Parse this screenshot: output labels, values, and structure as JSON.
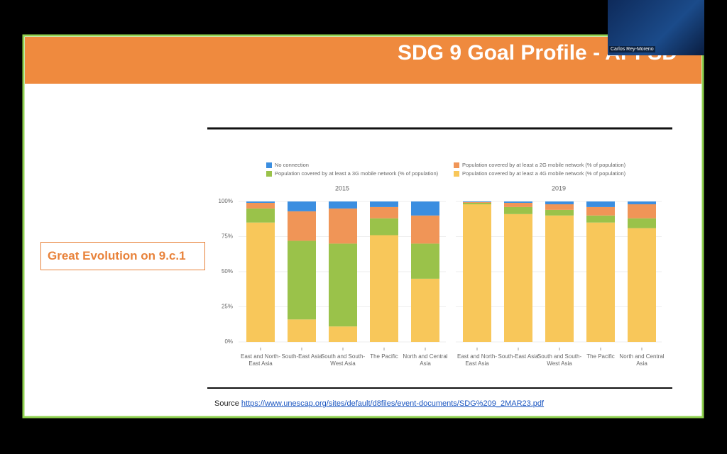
{
  "slide": {
    "title": "SDG 9 Goal Profile - APFSD",
    "callout": "Great Evolution on 9.c.1",
    "source_label": "Source",
    "source_url": "https://www.unescap.org/sites/default/d8files/event-documents/SDG%209_2MAR23.pdf"
  },
  "video": {
    "participant": "Carlos Rey-Moreno"
  },
  "chart_data": {
    "type": "bar",
    "stacked": true,
    "grid": true,
    "panels": [
      "2015",
      "2019"
    ],
    "categories": [
      [
        "East and North-East Asia",
        "South-East Asia",
        "South and South-West Asia",
        "The Pacific",
        "North and Central Asia"
      ],
      [
        "East and North-East Asia",
        "South-East Asia",
        "South and South-West Asia",
        "The Pacific",
        "North and Central Asia"
      ]
    ],
    "ylim": [
      0,
      100
    ],
    "yticks": [
      {
        "value": 0,
        "label": "0%"
      },
      {
        "value": 25,
        "label": "25%"
      },
      {
        "value": 50,
        "label": "50%"
      },
      {
        "value": 75,
        "label": "75%"
      },
      {
        "value": 100,
        "label": "100%"
      }
    ],
    "series": [
      {
        "name": "No connection",
        "color": "#3b8ee0",
        "values": [
          [
            1,
            7,
            5,
            4,
            10
          ],
          [
            0.5,
            1,
            2,
            4,
            2
          ]
        ]
      },
      {
        "name": "Population covered by at least a 2G mobile network (% of population)",
        "color": "#f09557",
        "values": [
          [
            4,
            21,
            25,
            8,
            20
          ],
          [
            0.5,
            3,
            4,
            6,
            10
          ]
        ]
      },
      {
        "name": "Population covered by at least a 3G mobile network (% of population)",
        "color": "#9ac24a",
        "values": [
          [
            10,
            56,
            59,
            12,
            25
          ],
          [
            1,
            5,
            4,
            5,
            7
          ]
        ]
      },
      {
        "name": "Population covered by at least a 4G mobile network (% of population)",
        "color": "#f8c75a",
        "values": [
          [
            85,
            16,
            11,
            76,
            45
          ],
          [
            98,
            91,
            90,
            85,
            81
          ]
        ]
      }
    ]
  }
}
